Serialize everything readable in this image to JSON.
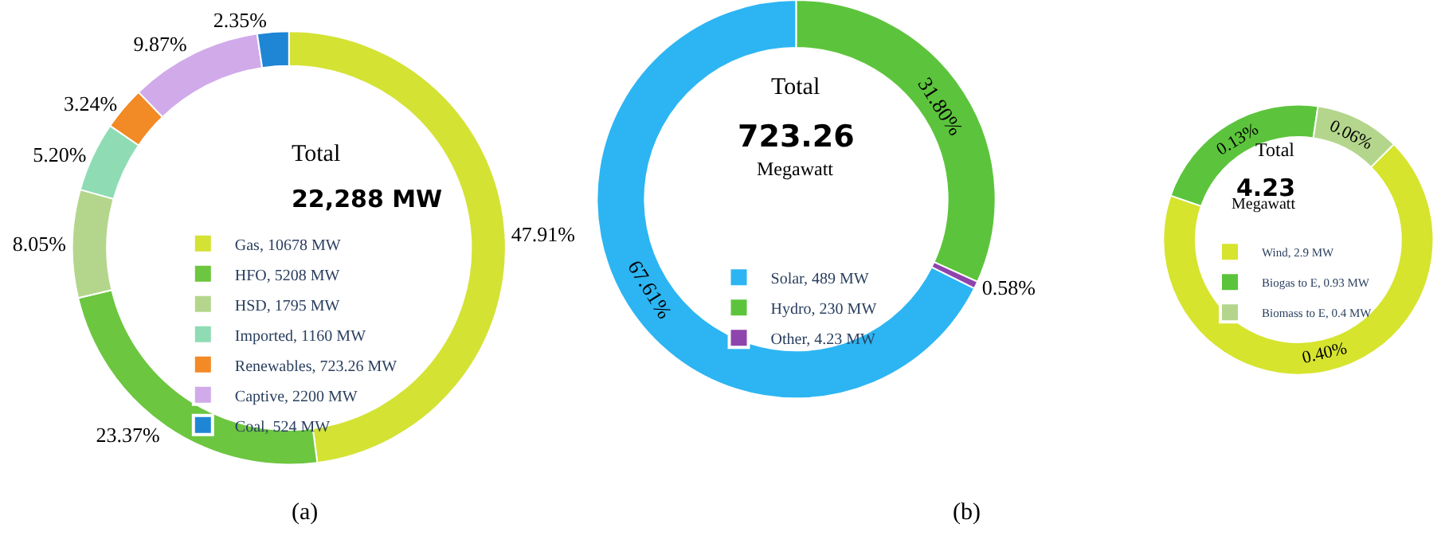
{
  "chart_data": [
    {
      "type": "donut",
      "categories": [
        "Gas, 10678 MW",
        "HFO, 5208 MW",
        "HSD, 1795 MW",
        "Imported, 1160 MW",
        "Renewables, 723.26 MW",
        "Captive, 2200 MW",
        "Coal, 524 MW"
      ],
      "values": [
        47.91,
        23.37,
        8.05,
        5.2,
        3.24,
        9.87,
        2.35
      ],
      "colors": [
        "#d4e234",
        "#6cc640",
        "#b4d68c",
        "#8fdcb4",
        "#f28a25",
        "#d1aaea",
        "#1f86d6"
      ],
      "value_labels": [
        "47.91%",
        "23.37%",
        "8.05%",
        "5.20%",
        "3.24%",
        "9.87%",
        "2.35%"
      ],
      "annotations": [
        "Total",
        "22,288 MW",
        "(a)"
      ],
      "legend": "center"
    },
    {
      "type": "donut",
      "categories": [
        "Solar, 489 MW",
        "Hydro, 230 MW",
        "Other, 4.23 MW"
      ],
      "values": [
        67.61,
        31.8,
        0.58
      ],
      "colors": [
        "#2cb5f2",
        "#5cc43c",
        "#8e44ad"
      ],
      "value_labels": [
        "67.61%",
        "31.80%",
        "0.58%"
      ],
      "annotations": [
        "Total",
        "723.26",
        "Megawatt",
        "(b)"
      ],
      "legend": "center"
    },
    {
      "type": "donut",
      "categories": [
        "Wind, 2.9 MW",
        "Biogas to E, 0.93 MW",
        "Biomass to E, 0.4 MW"
      ],
      "values": [
        0.4,
        0.13,
        0.06
      ],
      "colors": [
        "#d6e42e",
        "#5cc43c",
        "#b4d68c"
      ],
      "value_labels": [
        "0.40%",
        "0.13%",
        "0.06%"
      ],
      "annotations": [
        "Total",
        "4.23",
        "Megawatt"
      ],
      "legend": "center"
    }
  ]
}
